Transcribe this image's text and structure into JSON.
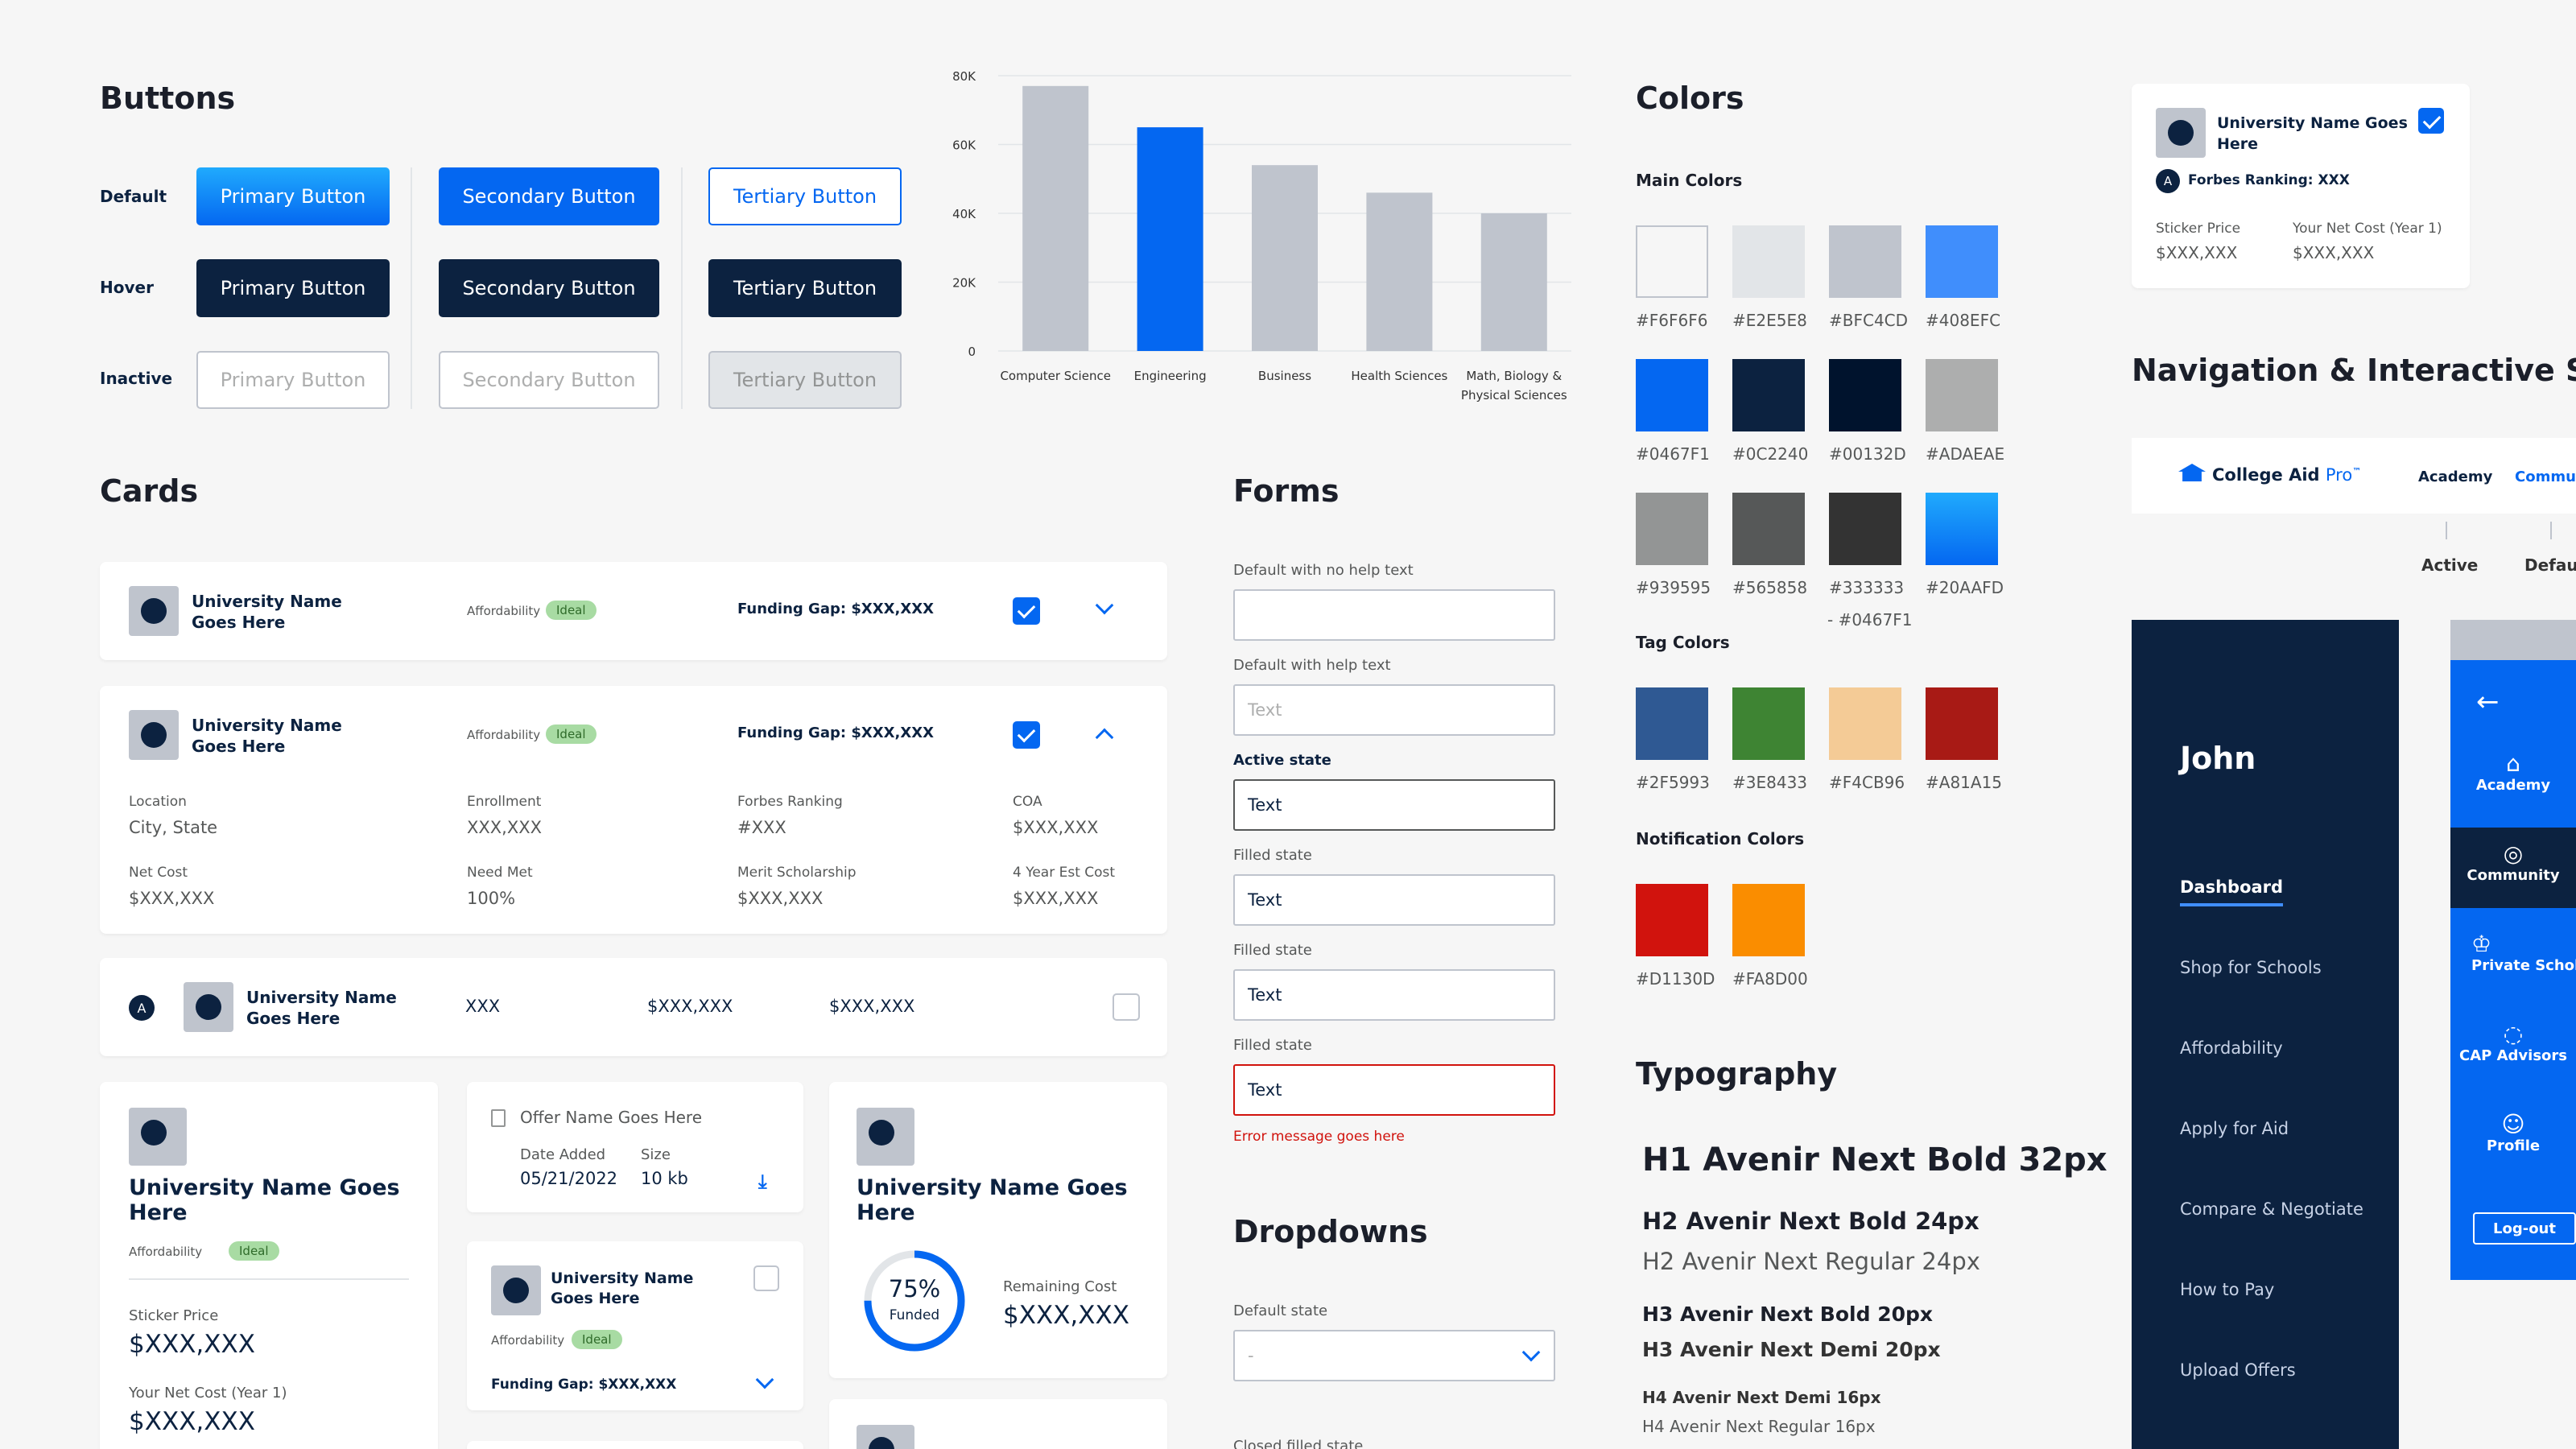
{
  "buttons": {
    "title": "Buttons",
    "rows": [
      "Default",
      "Hover",
      "Inactive"
    ],
    "primary": "Primary Button",
    "secondary": "Secondary Button",
    "tertiary": "Tertiary Button"
  },
  "chart_data": {
    "type": "bar",
    "categories": [
      "Computer Science",
      "Engineering",
      "Business",
      "Health Sciences",
      "Math, Biology & Physical Sciences"
    ],
    "values": [
      77000,
      65000,
      54000,
      46000,
      40000
    ],
    "highlight_index": 1,
    "colors": {
      "bar": "#bfc4cd",
      "highlight": "#0467f1"
    },
    "ylim": [
      0,
      80000
    ],
    "yticks": [
      "0",
      "20K",
      "40K",
      "60K",
      "80K"
    ],
    "grid": true
  },
  "colors": {
    "title": "Colors",
    "main_title": "Main Colors",
    "main": [
      {
        "hex": "#F6F6F6",
        "label": "#F6F6F6"
      },
      {
        "hex": "#E2E5E8",
        "label": "#E2E5E8"
      },
      {
        "hex": "#BFC4CD",
        "label": "#BFC4CD"
      },
      {
        "hex": "#408EFC",
        "label": "#408EFC"
      },
      {
        "hex": "#0467F1",
        "label": "#0467F1"
      },
      {
        "hex": "#0C2240",
        "label": "#0C2240"
      },
      {
        "hex": "#00132D",
        "label": "#00132D"
      },
      {
        "hex": "#ADAEAE",
        "label": "#ADAEAE"
      },
      {
        "hex": "#939595",
        "label": "#939595"
      },
      {
        "hex": "#565858",
        "label": "#565858"
      },
      {
        "hex": "#333333",
        "label": "#333333"
      },
      {
        "hex": "#20AAFD",
        "label": "#20AAFD"
      }
    ],
    "gradient_label_2": "- #0467F1",
    "tag_title": "Tag Colors",
    "tag": [
      {
        "hex": "#2F5993",
        "label": "#2F5993"
      },
      {
        "hex": "#3E8433",
        "label": "#3E8433"
      },
      {
        "hex": "#F4CB96",
        "label": "#F4CB96"
      },
      {
        "hex": "#A81A15",
        "label": "#A81A15"
      }
    ],
    "notif_title": "Notification Colors",
    "notif": [
      {
        "hex": "#D1130D",
        "label": "#D1130D"
      },
      {
        "hex": "#FA8D00",
        "label": "#FA8D00"
      }
    ]
  },
  "typography": {
    "title": "Typography",
    "h1": "H1 Avenir Next Bold 32px",
    "h2b": "H2 Avenir Next Bold 24px",
    "h2r": "H2 Avenir Next Regular 24px",
    "h3b": "H3 Avenir Next Bold 20px",
    "h3d": "H3 Avenir Next Demi 20px",
    "h4d": "H4 Avenir Next Demi 16px",
    "h4r": "H4 Avenir Next Regular 16px"
  },
  "cards": {
    "title": "Cards",
    "uni": "University Name Goes Here",
    "affordability": "Affordability",
    "ideal": "Ideal",
    "gap": "Funding Gap: $XXX,XXX",
    "details": [
      {
        "k": "Location",
        "v": "City, State"
      },
      {
        "k": "Enrollment",
        "v": "XXX,XXX"
      },
      {
        "k": "Forbes Ranking",
        "v": "#XXX"
      },
      {
        "k": "COA",
        "v": "$XXX,XXX"
      },
      {
        "k": "Net Cost",
        "v": "$XXX,XXX"
      },
      {
        "k": "Need Met",
        "v": "100%"
      },
      {
        "k": "Merit Scholarship",
        "v": "$XXX,XXX"
      },
      {
        "k": "4 Year Est Cost",
        "v": "$XXX,XXX"
      }
    ],
    "row3": {
      "badge": "A",
      "c1": "XXX",
      "c2": "$XXX,XXX",
      "c3": "$XXX,XXX"
    },
    "sticker": "Sticker Price",
    "money": "$XXX,XXX",
    "netcost": "Your Net Cost (Year 1)",
    "offer": {
      "name": "Offer Name Goes Here",
      "date_k": "Date Added",
      "date_v": "05/21/2022",
      "size_k": "Size",
      "size_v": "10 kb"
    },
    "funded": {
      "pct": "75%",
      "label": "Funded",
      "remaining": "Remaining Cost",
      "value": 0.75
    }
  },
  "forms": {
    "title": "Forms",
    "l1": "Default with no help text",
    "l2": "Default with help text",
    "l3": "Active state",
    "l4": "Filled state",
    "l5": "Filled state",
    "l6": "Filled state",
    "text": "Text",
    "error": "Error message goes here"
  },
  "dropdowns": {
    "title": "Dropdowns",
    "l1": "Default state",
    "placeholder": "-",
    "l2": "Closed filled state"
  },
  "college_card": {
    "uni": "University Name Goes Here",
    "badge": "A",
    "forbes": "Forbes Ranking: XXX",
    "sticker": "Sticker Price",
    "sticker_v": "$XXX,XXX",
    "net": "Your Net Cost (Year 1)",
    "net_v": "$XXX,XXX"
  },
  "nav": {
    "title": "Navigation & Interactive States",
    "brand": "College Aid",
    "brand2": "Pro",
    "sup": "™",
    "items": [
      "Academy",
      "Community"
    ],
    "states": [
      "Active",
      "Default"
    ],
    "side_name": "John",
    "side_items": [
      "Dashboard",
      "Shop for Schools",
      "Affordability",
      "Apply for Aid",
      "Compare & Negotiate",
      "How to Pay",
      "Upload Offers"
    ],
    "rail_items": [
      "Academy",
      "Community",
      "Private Scholarships",
      "CAP Advisors",
      "Profile"
    ],
    "logout": "Log-out"
  }
}
